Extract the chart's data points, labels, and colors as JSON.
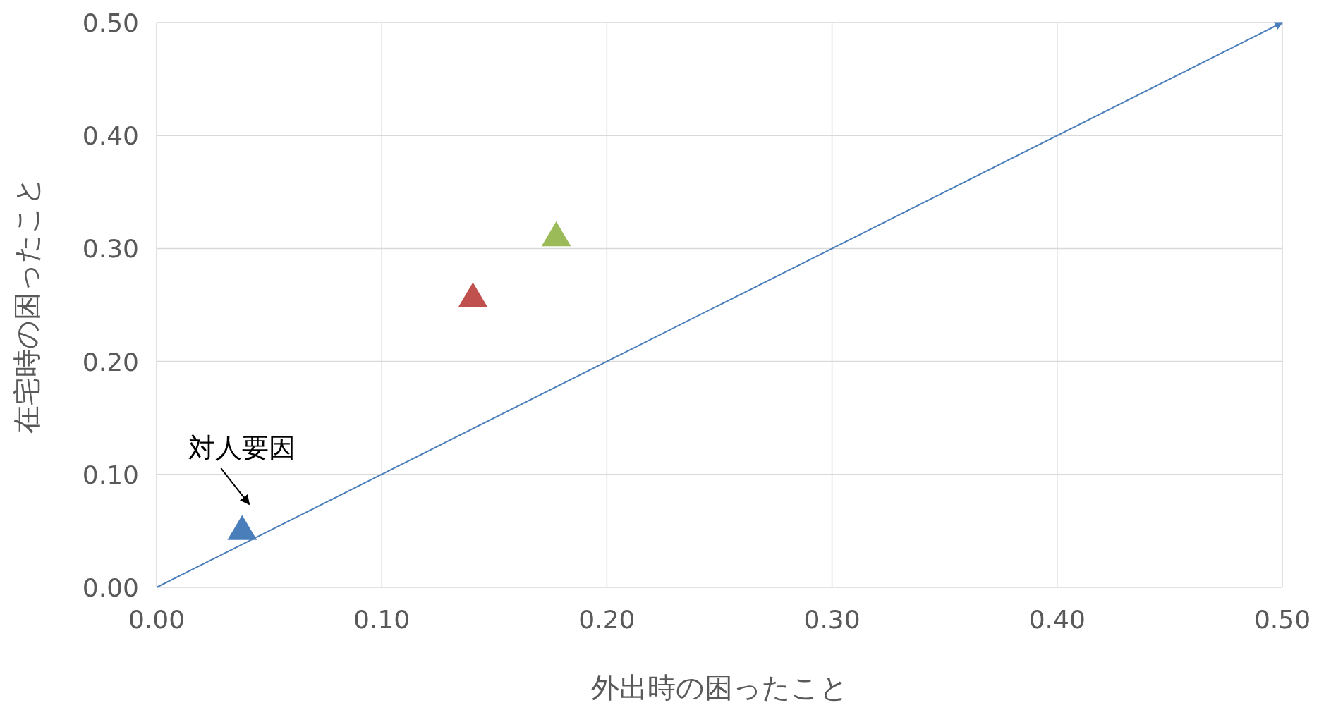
{
  "chart_data": {
    "type": "scatter",
    "xlabel": "外出時の困ったこと",
    "ylabel": "在宅時の困ったこと",
    "xlim": [
      0,
      0.5
    ],
    "ylim": [
      0,
      0.5
    ],
    "xticks": [
      {
        "value": 0,
        "label": "0.00"
      },
      {
        "value": 0.1,
        "label": "0.10"
      },
      {
        "value": 0.2,
        "label": "0.20"
      },
      {
        "value": 0.3,
        "label": "0.30"
      },
      {
        "value": 0.4,
        "label": "0.40"
      },
      {
        "value": 0.5,
        "label": "0.50"
      }
    ],
    "yticks": [
      {
        "value": 0,
        "label": "0.00"
      },
      {
        "value": 0.1,
        "label": "0.10"
      },
      {
        "value": 0.2,
        "label": "0.20"
      },
      {
        "value": 0.3,
        "label": "0.30"
      },
      {
        "value": 0.4,
        "label": "0.40"
      },
      {
        "value": 0.5,
        "label": "0.50"
      }
    ],
    "grid": true,
    "marker": "triangle",
    "annotations": [
      {
        "text": "対人要因",
        "x": 0.038,
        "y": 0.053
      }
    ],
    "series": [
      {
        "type": "line",
        "marker": "none",
        "color": "#4a7ebb",
        "x": [
          0,
          0.5
        ],
        "values": [
          0,
          0.5
        ]
      },
      {
        "type": "scatter",
        "color": "#4a7ebb",
        "x": [
          0.038
        ],
        "values": [
          0.053
        ]
      },
      {
        "type": "scatter",
        "color": "#c0504d",
        "x": [
          0.1405
        ],
        "values": [
          0.259
        ]
      },
      {
        "type": "scatter",
        "color": "#9bbb59",
        "x": [
          0.1775
        ],
        "values": [
          0.313
        ]
      }
    ]
  }
}
